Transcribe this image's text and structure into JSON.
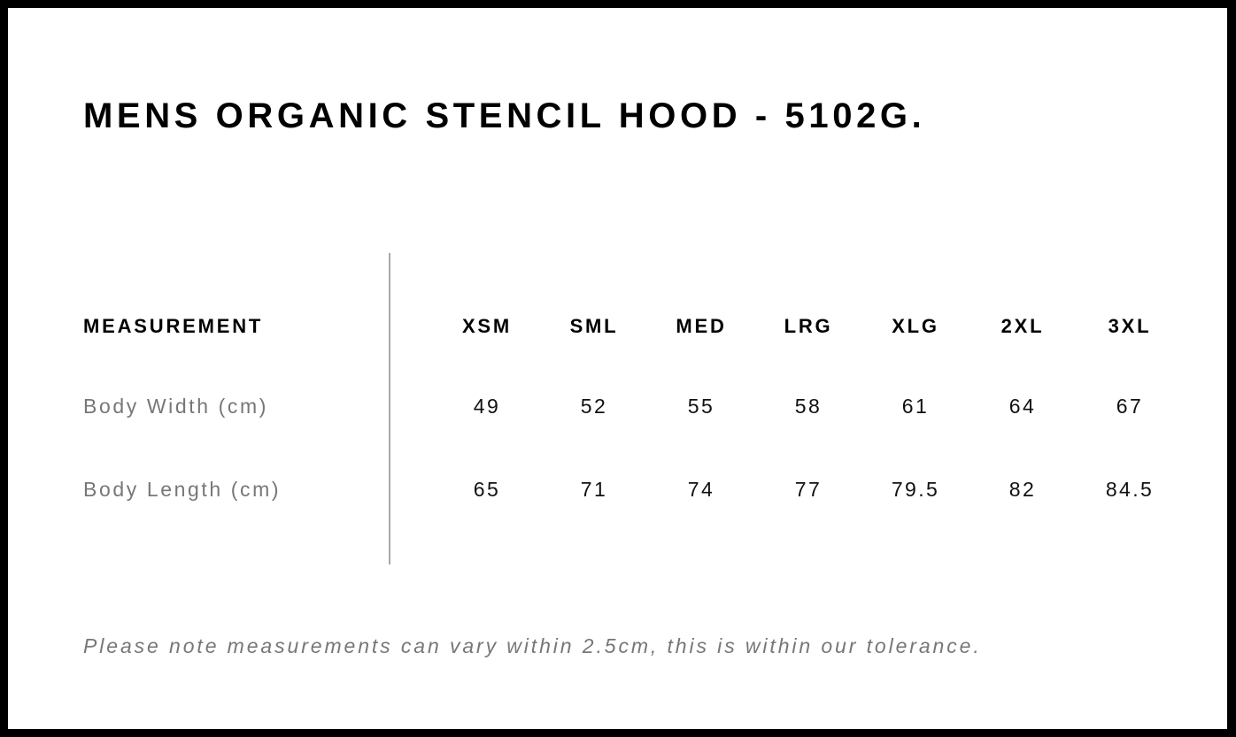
{
  "title": "MENS ORGANIC STENCIL HOOD - 5102G.",
  "table": {
    "header_label": "MEASUREMENT",
    "sizes": [
      "XSM",
      "SML",
      "MED",
      "LRG",
      "XLG",
      "2XL",
      "3XL"
    ],
    "rows": [
      {
        "label": "Body Width (cm)",
        "values": [
          "49",
          "52",
          "55",
          "58",
          "61",
          "64",
          "67"
        ]
      },
      {
        "label": "Body Length (cm)",
        "values": [
          "65",
          "71",
          "74",
          "77",
          "79.5",
          "82",
          "84.5"
        ]
      }
    ]
  },
  "note": "Please note measurements can vary within 2.5cm, this is within our tolerance.",
  "colors": {
    "border": "#000000",
    "label_grey": "#777777",
    "divider": "#a8a8a8"
  }
}
